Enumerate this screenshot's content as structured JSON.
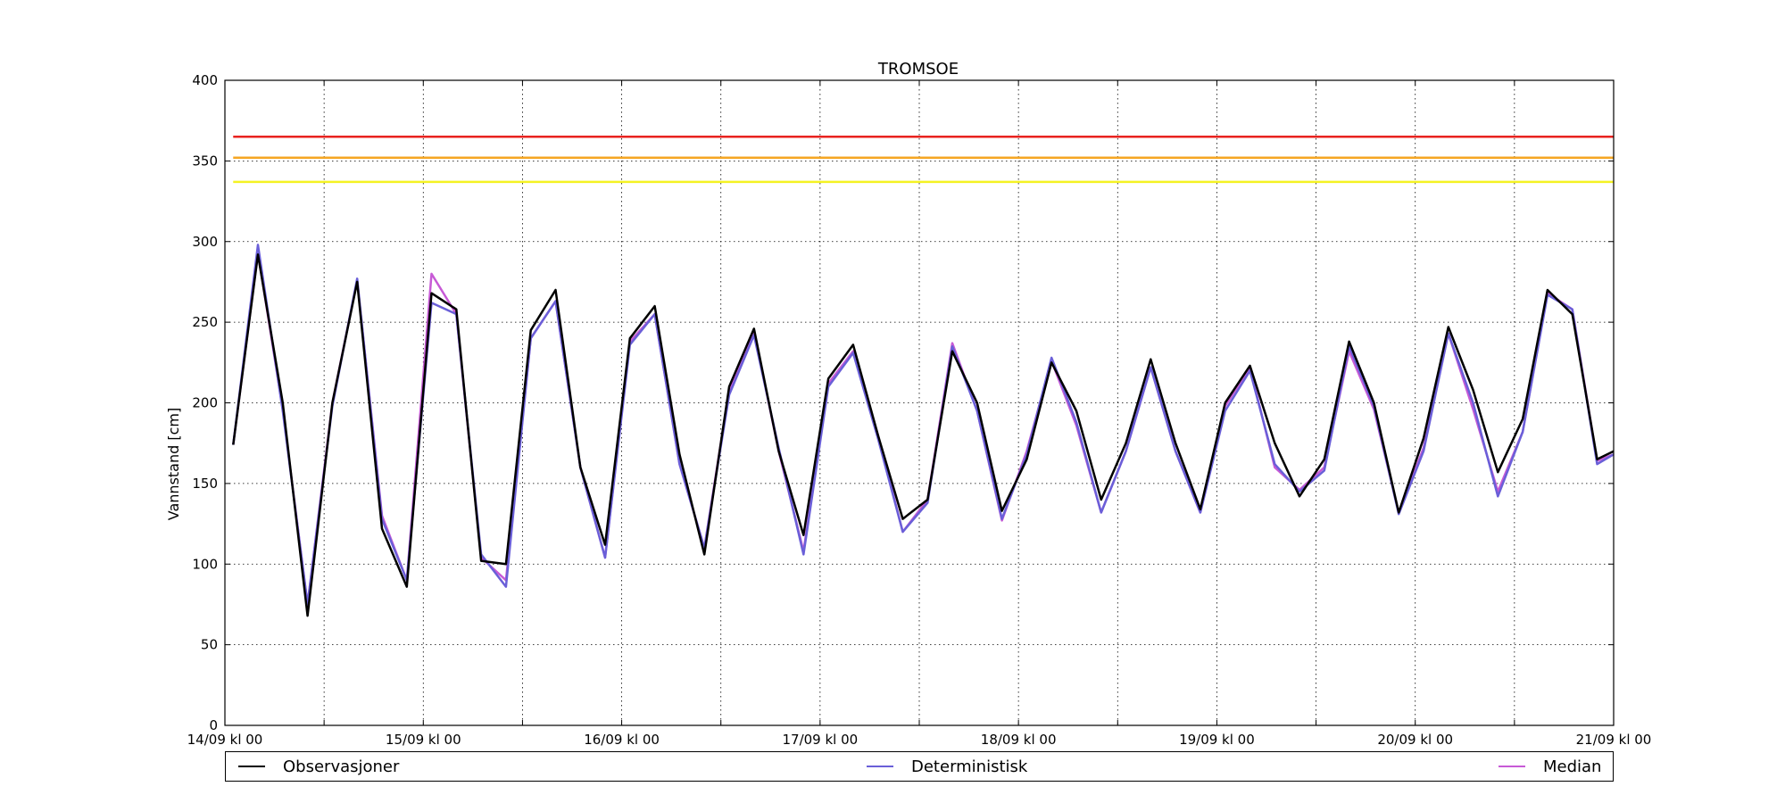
{
  "chart_data": {
    "type": "line",
    "title": "TROMSOE",
    "xlabel": "",
    "ylabel": "Vannstand [cm]",
    "ylim": [
      0,
      400
    ],
    "yticks": [
      0,
      50,
      100,
      150,
      200,
      250,
      300,
      350,
      400
    ],
    "xlim": [
      "14/09 00:00",
      "21/09 00:00"
    ],
    "xtick_labels": [
      "14/09 kl 00",
      "15/09 kl 00",
      "16/09 kl 00",
      "17/09 kl 00",
      "18/09 kl 00",
      "19/09 kl 00",
      "20/09 kl 00",
      "21/09 kl 00"
    ],
    "grid": true,
    "legend_position": "bottom",
    "thresholds": [
      {
        "value": 365,
        "color": "#e8231f"
      },
      {
        "value": 352,
        "color": "#f5a623"
      },
      {
        "value": 337,
        "color": "#f4f223"
      }
    ],
    "x_hours": [
      1,
      4,
      7,
      10,
      13,
      16,
      19,
      22,
      25,
      28,
      31,
      34,
      37,
      40,
      43,
      46,
      49,
      52,
      55,
      58,
      61,
      64,
      67,
      70,
      73,
      76,
      79,
      82,
      85,
      88,
      91,
      94,
      97,
      100,
      103,
      106,
      109,
      112,
      115,
      118,
      121,
      124,
      127,
      130,
      133,
      136,
      139,
      142,
      145,
      148,
      151,
      154,
      157,
      160,
      163,
      166,
      168
    ],
    "series": [
      {
        "name": "Observasjoner",
        "color": "#000000",
        "values": [
          174,
          292,
          200,
          68,
          200,
          275,
          122,
          86,
          268,
          258,
          102,
          100,
          245,
          270,
          160,
          112,
          240,
          260,
          168,
          106,
          210,
          246,
          170,
          118,
          215,
          236,
          180,
          128,
          140,
          232,
          200,
          133,
          165,
          225,
          195,
          140,
          175,
          227,
          175,
          134,
          200,
          223,
          175,
          142,
          165,
          238,
          200,
          132,
          178,
          247,
          208,
          157,
          190,
          270,
          255,
          165,
          170
        ]
      },
      {
        "name": "Deterministisk",
        "color": "#6a5fd8",
        "values": [
          174,
          298,
          195,
          75,
          198,
          277,
          128,
          90,
          262,
          255,
          106,
          86,
          240,
          263,
          160,
          104,
          236,
          255,
          162,
          110,
          205,
          242,
          172,
          106,
          210,
          231,
          178,
          120,
          138,
          235,
          195,
          128,
          168,
          228,
          188,
          132,
          170,
          222,
          170,
          132,
          195,
          220,
          162,
          145,
          158,
          235,
          198,
          131,
          170,
          243,
          200,
          142,
          182,
          267,
          258,
          162,
          168
        ]
      },
      {
        "name": "Median",
        "color": "#c75ad6",
        "values": [
          174,
          293,
          196,
          75,
          200,
          276,
          130,
          90,
          280,
          255,
          104,
          90,
          240,
          263,
          160,
          104,
          238,
          255,
          162,
          110,
          208,
          244,
          170,
          108,
          212,
          232,
          180,
          120,
          140,
          237,
          195,
          127,
          170,
          226,
          186,
          132,
          170,
          222,
          170,
          132,
          198,
          222,
          160,
          146,
          160,
          232,
          196,
          132,
          172,
          243,
          196,
          145,
          182,
          268,
          258,
          164,
          168
        ]
      }
    ]
  },
  "legend": {
    "items": [
      {
        "label": "Observasjoner",
        "color": "#000000"
      },
      {
        "label": "Deterministisk",
        "color": "#6a5fd8"
      },
      {
        "label": "Median",
        "color": "#c75ad6"
      }
    ]
  }
}
